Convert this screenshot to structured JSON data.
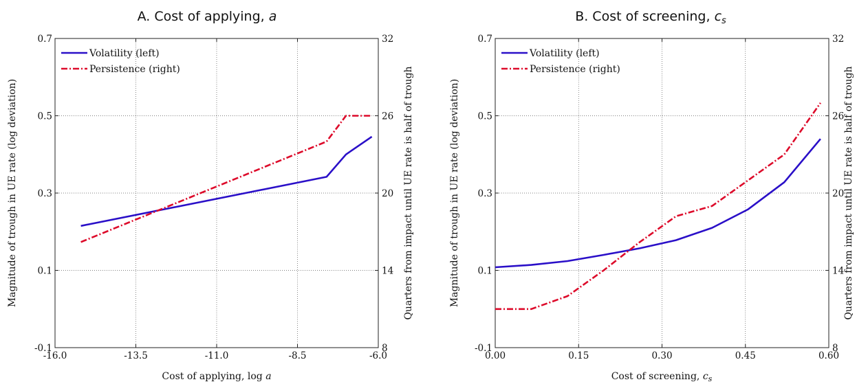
{
  "chart_data": [
    {
      "type": "line",
      "title": "A. Cost of applying, a",
      "title_main": "A. Cost of applying, ",
      "title_var": "a",
      "title_sub": "",
      "xlabel": "Cost of applying, log a",
      "xlabel_main": "Cost of applying, log ",
      "xlabel_var": "a",
      "xlabel_sub": "",
      "ylabel": "Magnitude of trough in UE rate (log deviation)",
      "y2label": "Quarters from impact until UE rate is half of trough",
      "xlim": [
        -16.0,
        -6.0
      ],
      "ylim": [
        -0.1,
        0.7
      ],
      "y2lim": [
        8,
        32
      ],
      "xticks": [
        -16.0,
        -13.5,
        -11.0,
        -8.5,
        -6.0
      ],
      "xtick_labels": [
        "-16.0",
        "-13.5",
        "-11.0",
        "-8.5",
        "-6.0"
      ],
      "yticks": [
        -0.1,
        0.1,
        0.3,
        0.5,
        0.7
      ],
      "ytick_labels": [
        "-0.1",
        "0.1",
        "0.3",
        "0.5",
        "0.7"
      ],
      "y2ticks": [
        8,
        14,
        20,
        26,
        32
      ],
      "y2tick_labels": [
        "8",
        "14",
        "20",
        "26",
        "32"
      ],
      "grid": true,
      "legend_position": "top-left",
      "series": [
        {
          "name": "Volatility (left)",
          "axis": "left",
          "color": "#2a0fc8",
          "style": "solid",
          "x": [
            -15.2,
            -7.6,
            -7.0,
            -6.2
          ],
          "y": [
            0.215,
            0.342,
            0.4,
            0.446
          ]
        },
        {
          "name": "Persistence (right)",
          "axis": "right",
          "color": "#dd0a2a",
          "style": "dashdot",
          "x": [
            -15.2,
            -7.6,
            -7.0,
            -6.2
          ],
          "y": [
            16.2,
            24.0,
            26.0,
            26.0
          ]
        }
      ]
    },
    {
      "type": "line",
      "title": "B. Cost of screening, c_s",
      "title_main": "B. Cost of screening, ",
      "title_var": "c",
      "title_sub": "s",
      "xlabel": "Cost of screening, c_s",
      "xlabel_main": "Cost of screening, ",
      "xlabel_var": "c",
      "xlabel_sub": "s",
      "ylabel": "Magnitude of trough in UE rate (log deviation)",
      "y2label": "Quarters from impact until UE rate is half of trough",
      "xlim": [
        0.0,
        0.6
      ],
      "ylim": [
        -0.1,
        0.7
      ],
      "y2lim": [
        8,
        32
      ],
      "xticks": [
        0.0,
        0.15,
        0.3,
        0.45,
        0.6
      ],
      "xtick_labels": [
        "0.00",
        "0.15",
        "0.30",
        "0.45",
        "0.60"
      ],
      "yticks": [
        -0.1,
        0.1,
        0.3,
        0.5,
        0.7
      ],
      "ytick_labels": [
        "-0.1",
        "0.1",
        "0.3",
        "0.5",
        "0.7"
      ],
      "y2ticks": [
        8,
        14,
        20,
        26,
        32
      ],
      "y2tick_labels": [
        "8",
        "14",
        "20",
        "26",
        "32"
      ],
      "grid": true,
      "legend_position": "top-left",
      "series": [
        {
          "name": "Volatility (left)",
          "axis": "left",
          "color": "#2a0fc8",
          "style": "solid",
          "x": [
            0.0,
            0.065,
            0.13,
            0.195,
            0.26,
            0.325,
            0.39,
            0.455,
            0.52,
            0.585
          ],
          "y": [
            0.108,
            0.114,
            0.124,
            0.14,
            0.157,
            0.178,
            0.21,
            0.258,
            0.328,
            0.44
          ]
        },
        {
          "name": "Persistence (right)",
          "axis": "right",
          "color": "#dd0a2a",
          "style": "dashdot",
          "x": [
            0.0,
            0.065,
            0.13,
            0.195,
            0.26,
            0.325,
            0.39,
            0.455,
            0.52,
            0.585
          ],
          "y": [
            11.0,
            11.0,
            12.0,
            14.0,
            16.2,
            18.2,
            19.0,
            21.0,
            23.0,
            27.0
          ]
        }
      ]
    }
  ]
}
